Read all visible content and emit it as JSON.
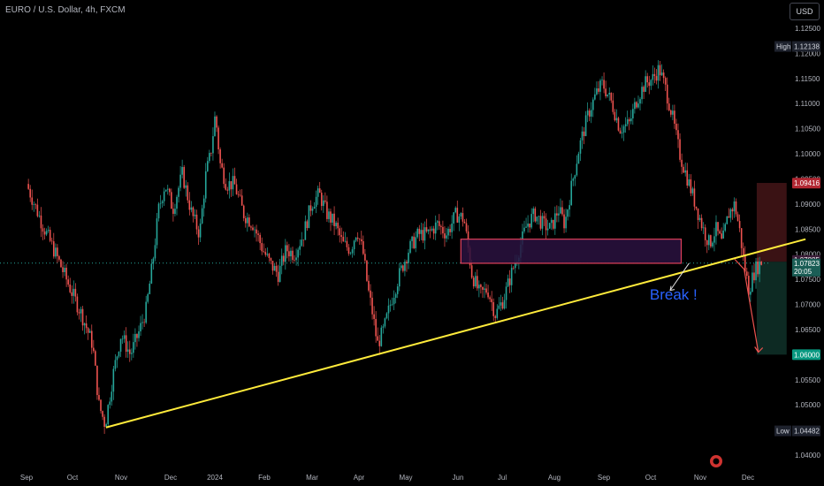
{
  "header": {
    "title": "EURO / U.S. Dollar, 4h, FXCM",
    "currency_button": "USD"
  },
  "colors": {
    "background": "#000000",
    "up": "#26a69a",
    "down": "#ef5350",
    "trendline": "#ffeb3b",
    "zone_fill": "#2a1240",
    "zone_border": "#e0405a",
    "break_text": "#2962ff",
    "target_arrow": "#ef5350",
    "axis_text": "#b2b5be",
    "stop_zone": "#3a1214",
    "profit_zone": "#0d2a23"
  },
  "chart_data": {
    "type": "candlestick",
    "title": "EURO / U.S. Dollar, 4h, FXCM",
    "xlabel": "",
    "ylabel": "",
    "ylim": [
      1.0375,
      1.1275
    ],
    "x_ticks": [
      "Sep",
      "Oct",
      "Nov",
      "Dec",
      "2024",
      "Feb",
      "Mar",
      "Apr",
      "May",
      "Jun",
      "Jul",
      "Aug",
      "Sep",
      "Oct",
      "Nov",
      "Dec"
    ],
    "y_ticks": [
      "1.12500",
      "1.12000",
      "1.11500",
      "1.11000",
      "1.10500",
      "1.10000",
      "1.09500",
      "1.09000",
      "1.08500",
      "1.08000",
      "1.07500",
      "1.07000",
      "1.06500",
      "1.06000",
      "1.05500",
      "1.05000",
      "1.04500",
      "1.04000"
    ],
    "price_path": [
      [
        0,
        1.094
      ],
      [
        1,
        1.086
      ],
      [
        2,
        1.079
      ],
      [
        2.8,
        1.073
      ],
      [
        3.5,
        1.068
      ],
      [
        4.2,
        1.062
      ],
      [
        4.6,
        1.05
      ],
      [
        5,
        1.046
      ],
      [
        5.5,
        1.056
      ],
      [
        6,
        1.064
      ],
      [
        6.6,
        1.06
      ],
      [
        7.2,
        1.065
      ],
      [
        7.6,
        1.069
      ],
      [
        8,
        1.078
      ],
      [
        8.4,
        1.089
      ],
      [
        8.8,
        1.094
      ],
      [
        9.3,
        1.089
      ],
      [
        9.9,
        1.096
      ],
      [
        10.5,
        1.088
      ],
      [
        11,
        1.084
      ],
      [
        11.4,
        1.096
      ],
      [
        11.7,
        1.1
      ],
      [
        12,
        1.108
      ],
      [
        12.3,
        1.098
      ],
      [
        12.7,
        1.094
      ],
      [
        13.2,
        1.094
      ],
      [
        13.8,
        1.088
      ],
      [
        14.4,
        1.086
      ],
      [
        15,
        1.081
      ],
      [
        15.5,
        1.078
      ],
      [
        16,
        1.076
      ],
      [
        16.5,
        1.081
      ],
      [
        17,
        1.08
      ],
      [
        17.6,
        1.084
      ],
      [
        18.1,
        1.09
      ],
      [
        18.6,
        1.092
      ],
      [
        19.1,
        1.088
      ],
      [
        19.6,
        1.086
      ],
      [
        20.1,
        1.082
      ],
      [
        20.6,
        1.081
      ],
      [
        21,
        1.085
      ],
      [
        21.4,
        1.08
      ],
      [
        21.7,
        1.073
      ],
      [
        22,
        1.068
      ],
      [
        22.3,
        1.062
      ],
      [
        22.7,
        1.065
      ],
      [
        23.2,
        1.071
      ],
      [
        23.7,
        1.076
      ],
      [
        24.3,
        1.081
      ],
      [
        24.9,
        1.084
      ],
      [
        25.5,
        1.084
      ],
      [
        26.1,
        1.086
      ],
      [
        26.7,
        1.084
      ],
      [
        27.3,
        1.088
      ],
      [
        27.8,
        1.087
      ],
      [
        28.3,
        1.076
      ],
      [
        28.8,
        1.072
      ],
      [
        29.3,
        1.073
      ],
      [
        29.8,
        1.068
      ],
      [
        30.3,
        1.071
      ],
      [
        30.8,
        1.076
      ],
      [
        31.3,
        1.081
      ],
      [
        31.8,
        1.086
      ],
      [
        32.3,
        1.088
      ],
      [
        32.8,
        1.086
      ],
      [
        33.3,
        1.085
      ],
      [
        33.8,
        1.089
      ],
      [
        34.2,
        1.086
      ],
      [
        34.6,
        1.093
      ],
      [
        35.1,
        1.101
      ],
      [
        35.7,
        1.108
      ],
      [
        36.2,
        1.112
      ],
      [
        36.6,
        1.114
      ],
      [
        37.2,
        1.11
      ],
      [
        37.7,
        1.105
      ],
      [
        38.3,
        1.106
      ],
      [
        38.8,
        1.111
      ],
      [
        39.3,
        1.114
      ],
      [
        39.8,
        1.115
      ],
      [
        40.2,
        1.117
      ],
      [
        40.6,
        1.113
      ],
      [
        41,
        1.108
      ],
      [
        41.5,
        1.1
      ],
      [
        42,
        1.095
      ],
      [
        42.5,
        1.09
      ],
      [
        43,
        1.085
      ],
      [
        43.4,
        1.082
      ],
      [
        43.8,
        1.085
      ],
      [
        44.2,
        1.082
      ],
      [
        44.6,
        1.088
      ],
      [
        45,
        1.09
      ],
      [
        45.3,
        1.085
      ],
      [
        45.6,
        1.078
      ],
      [
        45.9,
        1.073
      ],
      [
        46.3,
        1.077
      ],
      [
        46.7,
        1.0785
      ]
    ],
    "indicators": {
      "high_label": "High",
      "high_value": "1.12138",
      "low_label": "Low",
      "low_value": "1.04482",
      "top_level": "1.09416",
      "zone_level": "1.07885",
      "current_price": "1.07823",
      "countdown": "20:05",
      "target_level": "1.06000"
    },
    "zone": {
      "x_start": 27.6,
      "x_end": 41.6,
      "y_low": 1.0782,
      "y_high": 1.083
    },
    "trendline": {
      "x1": 5.05,
      "y1": 1.0455,
      "x2": 49.5,
      "y2": 1.083
    },
    "risk_box": {
      "x_start": 46.4,
      "x_end": 48.3,
      "entry": 1.0785,
      "stop": 1.0942,
      "target": 1.06
    },
    "annotation": {
      "text": "Break !",
      "x": 39.6,
      "y": 1.071
    }
  }
}
